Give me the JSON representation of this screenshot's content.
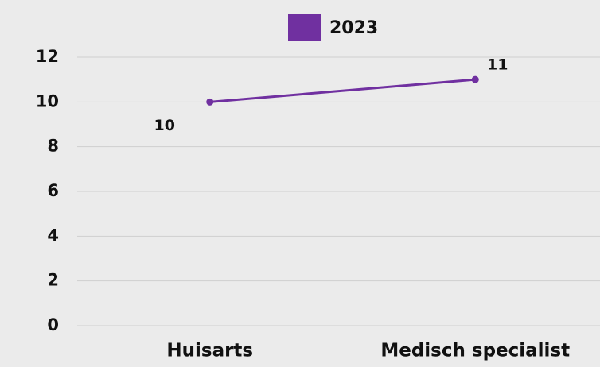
{
  "chart_data": {
    "type": "line",
    "categories": [
      "Huisarts",
      "Medisch specialist"
    ],
    "series": [
      {
        "name": "2023",
        "color": "#7030a0",
        "values": [
          10,
          11
        ]
      }
    ],
    "ylim": [
      0,
      12
    ],
    "yticks": [
      0,
      2,
      4,
      6,
      8,
      10,
      12
    ],
    "grid": true,
    "legend": "top"
  }
}
